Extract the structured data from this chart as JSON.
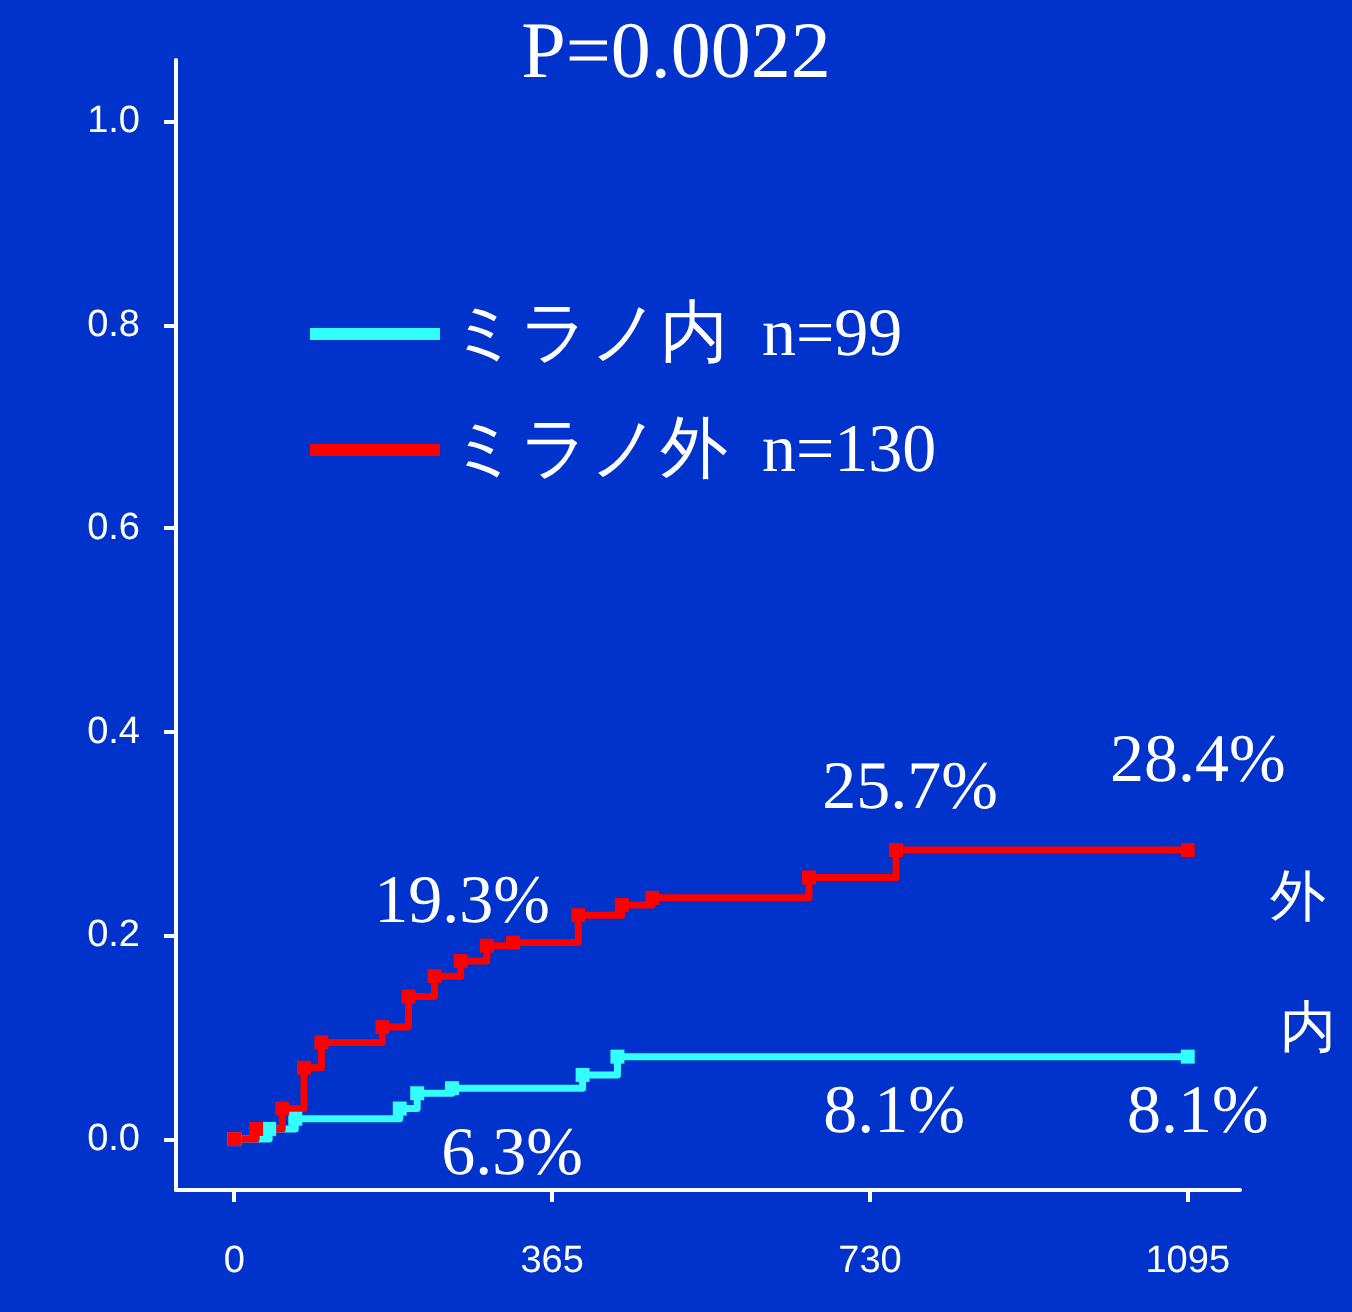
{
  "chart_data": {
    "type": "step",
    "title": "P=0.0022",
    "xlim": [
      -67,
      1155
    ],
    "xticks": [
      0,
      365,
      730,
      1095
    ],
    "ylim": [
      -0.05,
      1.06
    ],
    "yticks": [
      {
        "value": 0,
        "label": "0.0"
      },
      {
        "value": 0.2,
        "label": "0.2"
      },
      {
        "value": 0.4,
        "label": "0.4"
      },
      {
        "value": 0.6,
        "label": "0.6"
      },
      {
        "value": 0.8,
        "label": "0.8"
      },
      {
        "value": 1,
        "label": "1.0"
      }
    ],
    "grid": false,
    "legend": "top left",
    "marker": "square",
    "line_style": "solid",
    "series": [
      {
        "name": "ミラノ内  n=99",
        "color": "#33ffff",
        "x": [
          0,
          40,
          70,
          190,
          210,
          250,
          400,
          440,
          1095
        ],
        "values": [
          0,
          0.01,
          0.02,
          0.03,
          0.045,
          0.05,
          0.063,
          0.081,
          0.081
        ]
      },
      {
        "name": "ミラノ外  n=130",
        "color": "#ff0000",
        "x": [
          0,
          25,
          55,
          80,
          100,
          170,
          200,
          230,
          260,
          290,
          320,
          395,
          445,
          480,
          660,
          760,
          1095
        ],
        "values": [
          0,
          0.01,
          0.03,
          0.07,
          0.095,
          0.11,
          0.14,
          0.16,
          0.175,
          0.19,
          0.193,
          0.22,
          0.23,
          0.237,
          0.257,
          0.284,
          0.284
        ]
      }
    ],
    "annotations": [
      {
        "text": "19.3%",
        "x": 365,
        "y": 0.193
      },
      {
        "text": "25.7%",
        "x": 730,
        "y": 0.257
      },
      {
        "text": "28.4%",
        "x": 1095,
        "y": 0.284
      },
      {
        "text": "6.3%",
        "x": 365,
        "y": 0.063
      },
      {
        "text": "8.1%",
        "x": 730,
        "y": 0.081
      },
      {
        "text": "8.1%",
        "x": 1095,
        "y": 0.081
      },
      {
        "text": "外",
        "x": 1095,
        "y": 0.284
      },
      {
        "text": "内",
        "x": 1095,
        "y": 0.081
      }
    ]
  }
}
